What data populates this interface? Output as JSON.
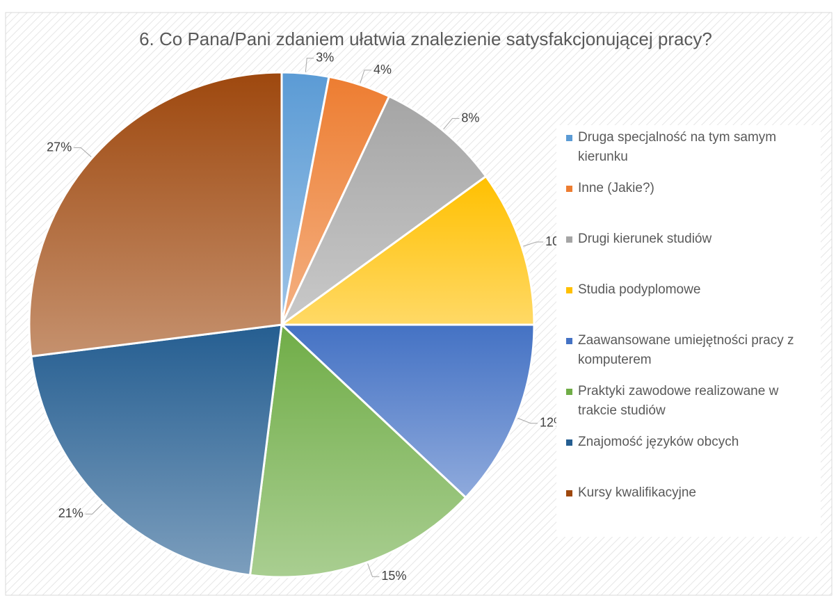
{
  "chart_data": {
    "type": "pie",
    "title": "6. Co Pana/Pani zdaniem ułatwia znalezienie satysfakcjonującej pracy?",
    "categories": [
      "Druga specjalność na tym samym kierunku",
      "Inne (Jakie?)",
      "Drugi kierunek studiów",
      "Studia podyplomowe",
      "Zaawansowane umiejętności pracy z komputerem",
      "Praktyki zawodowe realizowane w trakcie studiów",
      "Znajomość języków obcych",
      "Kursy kwalifikacyjne"
    ],
    "values": [
      3,
      4,
      8,
      10,
      12,
      15,
      21,
      27
    ],
    "colors": [
      "#5b9bd5",
      "#ed7d31",
      "#a5a5a5",
      "#ffc000",
      "#4472c4",
      "#70ad47",
      "#255e91",
      "#9e480e"
    ],
    "legend": "right"
  }
}
